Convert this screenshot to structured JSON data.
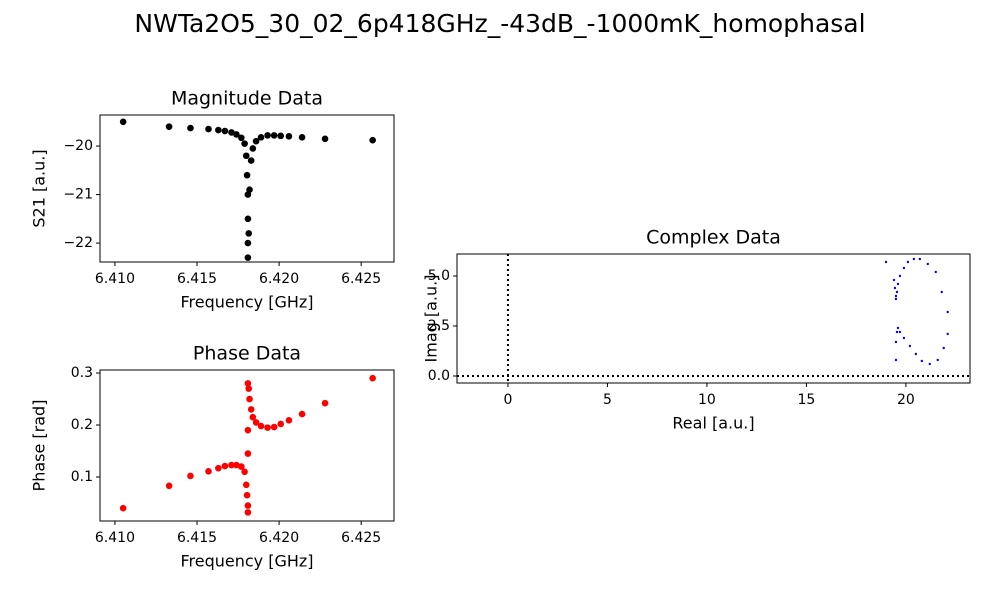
{
  "title": "NWTa2O5_30_02_6p418GHz_-43dB_-1000mK_homophasal",
  "chart_data": [
    {
      "type": "scatter",
      "title": "Magnitude Data",
      "xlabel": "Frequency [GHz]",
      "ylabel": "S21 [a.u.]",
      "xlim": [
        6.40909,
        6.427
      ],
      "ylim": [
        -22.39,
        -19.36
      ],
      "xticks": [
        {
          "value": 6.41,
          "label": "6.410"
        },
        6.415,
        {
          "value": 6.42,
          "label": "6.420"
        },
        6.425
      ],
      "yticks": [
        {
          "value": -20,
          "label": "−20"
        },
        {
          "value": -21,
          "label": "−21"
        },
        {
          "value": -22,
          "label": "−22"
        }
      ],
      "series": [
        {
          "color": "#000000",
          "x": [
            6.4105,
            6.4133,
            6.4146,
            6.4157,
            6.4163,
            6.4167,
            6.4171,
            6.4174,
            6.4177,
            6.4179,
            6.418,
            6.41805,
            6.4181,
            6.4181,
            6.4181,
            6.4181,
            6.41815,
            6.4182,
            6.4183,
            6.4184,
            6.4186,
            6.4189,
            6.4193,
            6.4197,
            6.4201,
            6.4206,
            6.4214,
            6.4228,
            6.4257
          ],
          "values": [
            -19.5,
            -19.6,
            -19.63,
            -19.65,
            -19.67,
            -19.69,
            -19.72,
            -19.76,
            -19.83,
            -19.95,
            -20.2,
            -20.6,
            -21.0,
            -21.5,
            -22.0,
            -22.3,
            -21.8,
            -20.9,
            -20.3,
            -20.05,
            -19.9,
            -19.82,
            -19.78,
            -19.78,
            -19.79,
            -19.8,
            -19.82,
            -19.85,
            -19.88
          ]
        }
      ]
    },
    {
      "type": "scatter",
      "title": "Phase Data",
      "xlabel": "Frequency [GHz]",
      "ylabel": "Phase [rad]",
      "xlim": [
        6.40909,
        6.427
      ],
      "ylim": [
        0.0154,
        0.3058
      ],
      "xticks": [
        {
          "value": 6.41,
          "label": "6.410"
        },
        6.415,
        {
          "value": 6.42,
          "label": "6.420"
        },
        6.425
      ],
      "yticks": [
        0.1,
        0.2,
        0.3
      ],
      "series": [
        {
          "color": "#ff0000",
          "x": [
            6.4105,
            6.4133,
            6.4146,
            6.4157,
            6.4163,
            6.4167,
            6.4171,
            6.4174,
            6.4177,
            6.4179,
            6.418,
            6.41805,
            6.4181,
            6.4181,
            6.4181,
            6.4181,
            6.4181,
            6.41815,
            6.4182,
            6.4183,
            6.4184,
            6.4186,
            6.4189,
            6.4193,
            6.4197,
            6.4201,
            6.4206,
            6.4214,
            6.4228,
            6.4257
          ],
          "values": [
            0.04,
            0.083,
            0.102,
            0.111,
            0.117,
            0.121,
            0.123,
            0.123,
            0.12,
            0.11,
            0.085,
            0.065,
            0.045,
            0.032,
            0.145,
            0.19,
            0.28,
            0.27,
            0.25,
            0.23,
            0.215,
            0.205,
            0.198,
            0.195,
            0.196,
            0.202,
            0.209,
            0.221,
            0.242,
            0.29
          ]
        }
      ]
    },
    {
      "type": "scatter",
      "title": "Complex Data",
      "xlabel": "Real [a.u.]",
      "ylabel": "Imag [a.u.]",
      "xlim": [
        -2.56,
        23.22
      ],
      "ylim": [
        -0.35,
        6.1
      ],
      "xticks": [
        0,
        5,
        10,
        15,
        20
      ],
      "yticks": [
        {
          "value": 0,
          "label": "0.0"
        },
        2.5,
        {
          "value": 5,
          "label": "5.0"
        }
      ],
      "axvline": 0,
      "axhline": 0,
      "series": [
        {
          "color": "#0000ff",
          "x": [
            19.0,
            19.4,
            19.45,
            19.5,
            19.5,
            19.55,
            19.6,
            19.7,
            19.9,
            20.1,
            20.4,
            20.7,
            21.1,
            21.5,
            21.8,
            22.1,
            22.1,
            21.9,
            21.6,
            21.2,
            20.8,
            20.5,
            20.2,
            19.9,
            19.7,
            19.6,
            19.55,
            19.5,
            19.5
          ],
          "values": [
            5.7,
            4.8,
            4.4,
            4.0,
            3.85,
            4.2,
            4.6,
            5.0,
            5.4,
            5.7,
            5.85,
            5.85,
            5.6,
            5.2,
            4.2,
            3.2,
            2.1,
            1.4,
            0.8,
            0.6,
            0.75,
            1.1,
            1.5,
            1.9,
            2.2,
            2.4,
            2.2,
            1.7,
            0.8
          ]
        }
      ]
    }
  ]
}
